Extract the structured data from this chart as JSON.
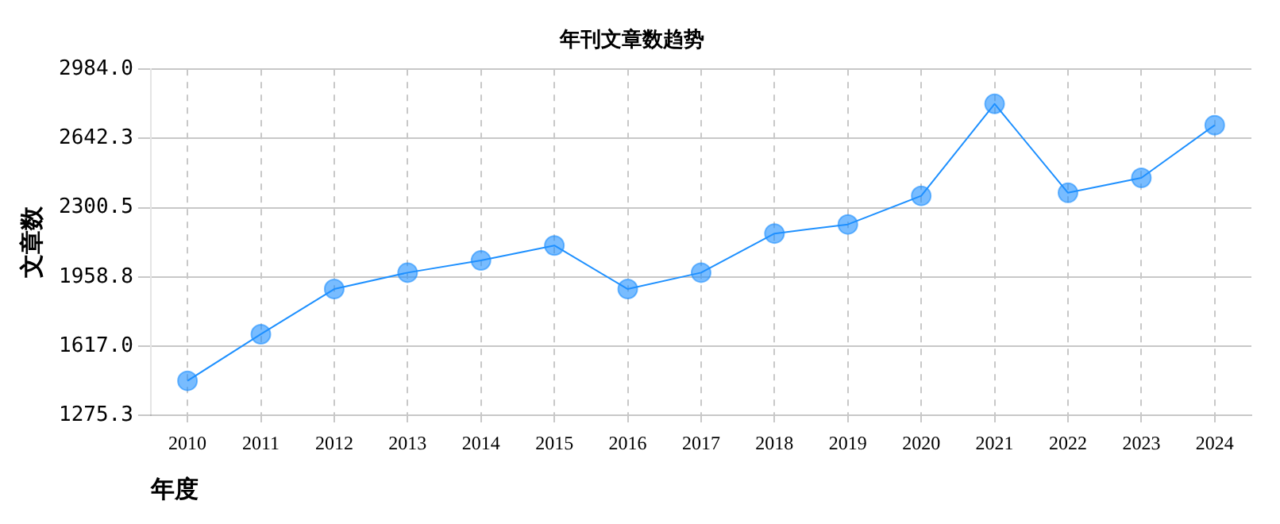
{
  "chart_data": {
    "type": "line",
    "title": "年刊文章数趋势",
    "xlabel": "年度",
    "ylabel": "文章数",
    "categories": [
      "2010",
      "2011",
      "2012",
      "2013",
      "2014",
      "2015",
      "2016",
      "2017",
      "2018",
      "2019",
      "2020",
      "2021",
      "2022",
      "2023",
      "2024"
    ],
    "series": [
      {
        "color": "#1e90ff",
        "values": [
          1446,
          1676,
          1899,
          1980,
          2040,
          2114,
          1899,
          1980,
          2173,
          2218,
          2359,
          2813,
          2374,
          2448,
          2708
        ]
      }
    ],
    "ylim": [
      1275.3,
      2984.0
    ],
    "yticks": [
      {
        "value": 1275.3,
        "label": "1275.3"
      },
      {
        "value": 1617,
        "label": "1617.0"
      },
      {
        "value": 1958.8,
        "label": "1958.8"
      },
      {
        "value": 2300.5,
        "label": "2300.5"
      },
      {
        "value": 2642.3,
        "label": "2642.3"
      },
      {
        "value": 2984,
        "label": "2984.0"
      }
    ],
    "grid": true,
    "marker": "circle",
    "line_style": "solid",
    "legend": false
  }
}
